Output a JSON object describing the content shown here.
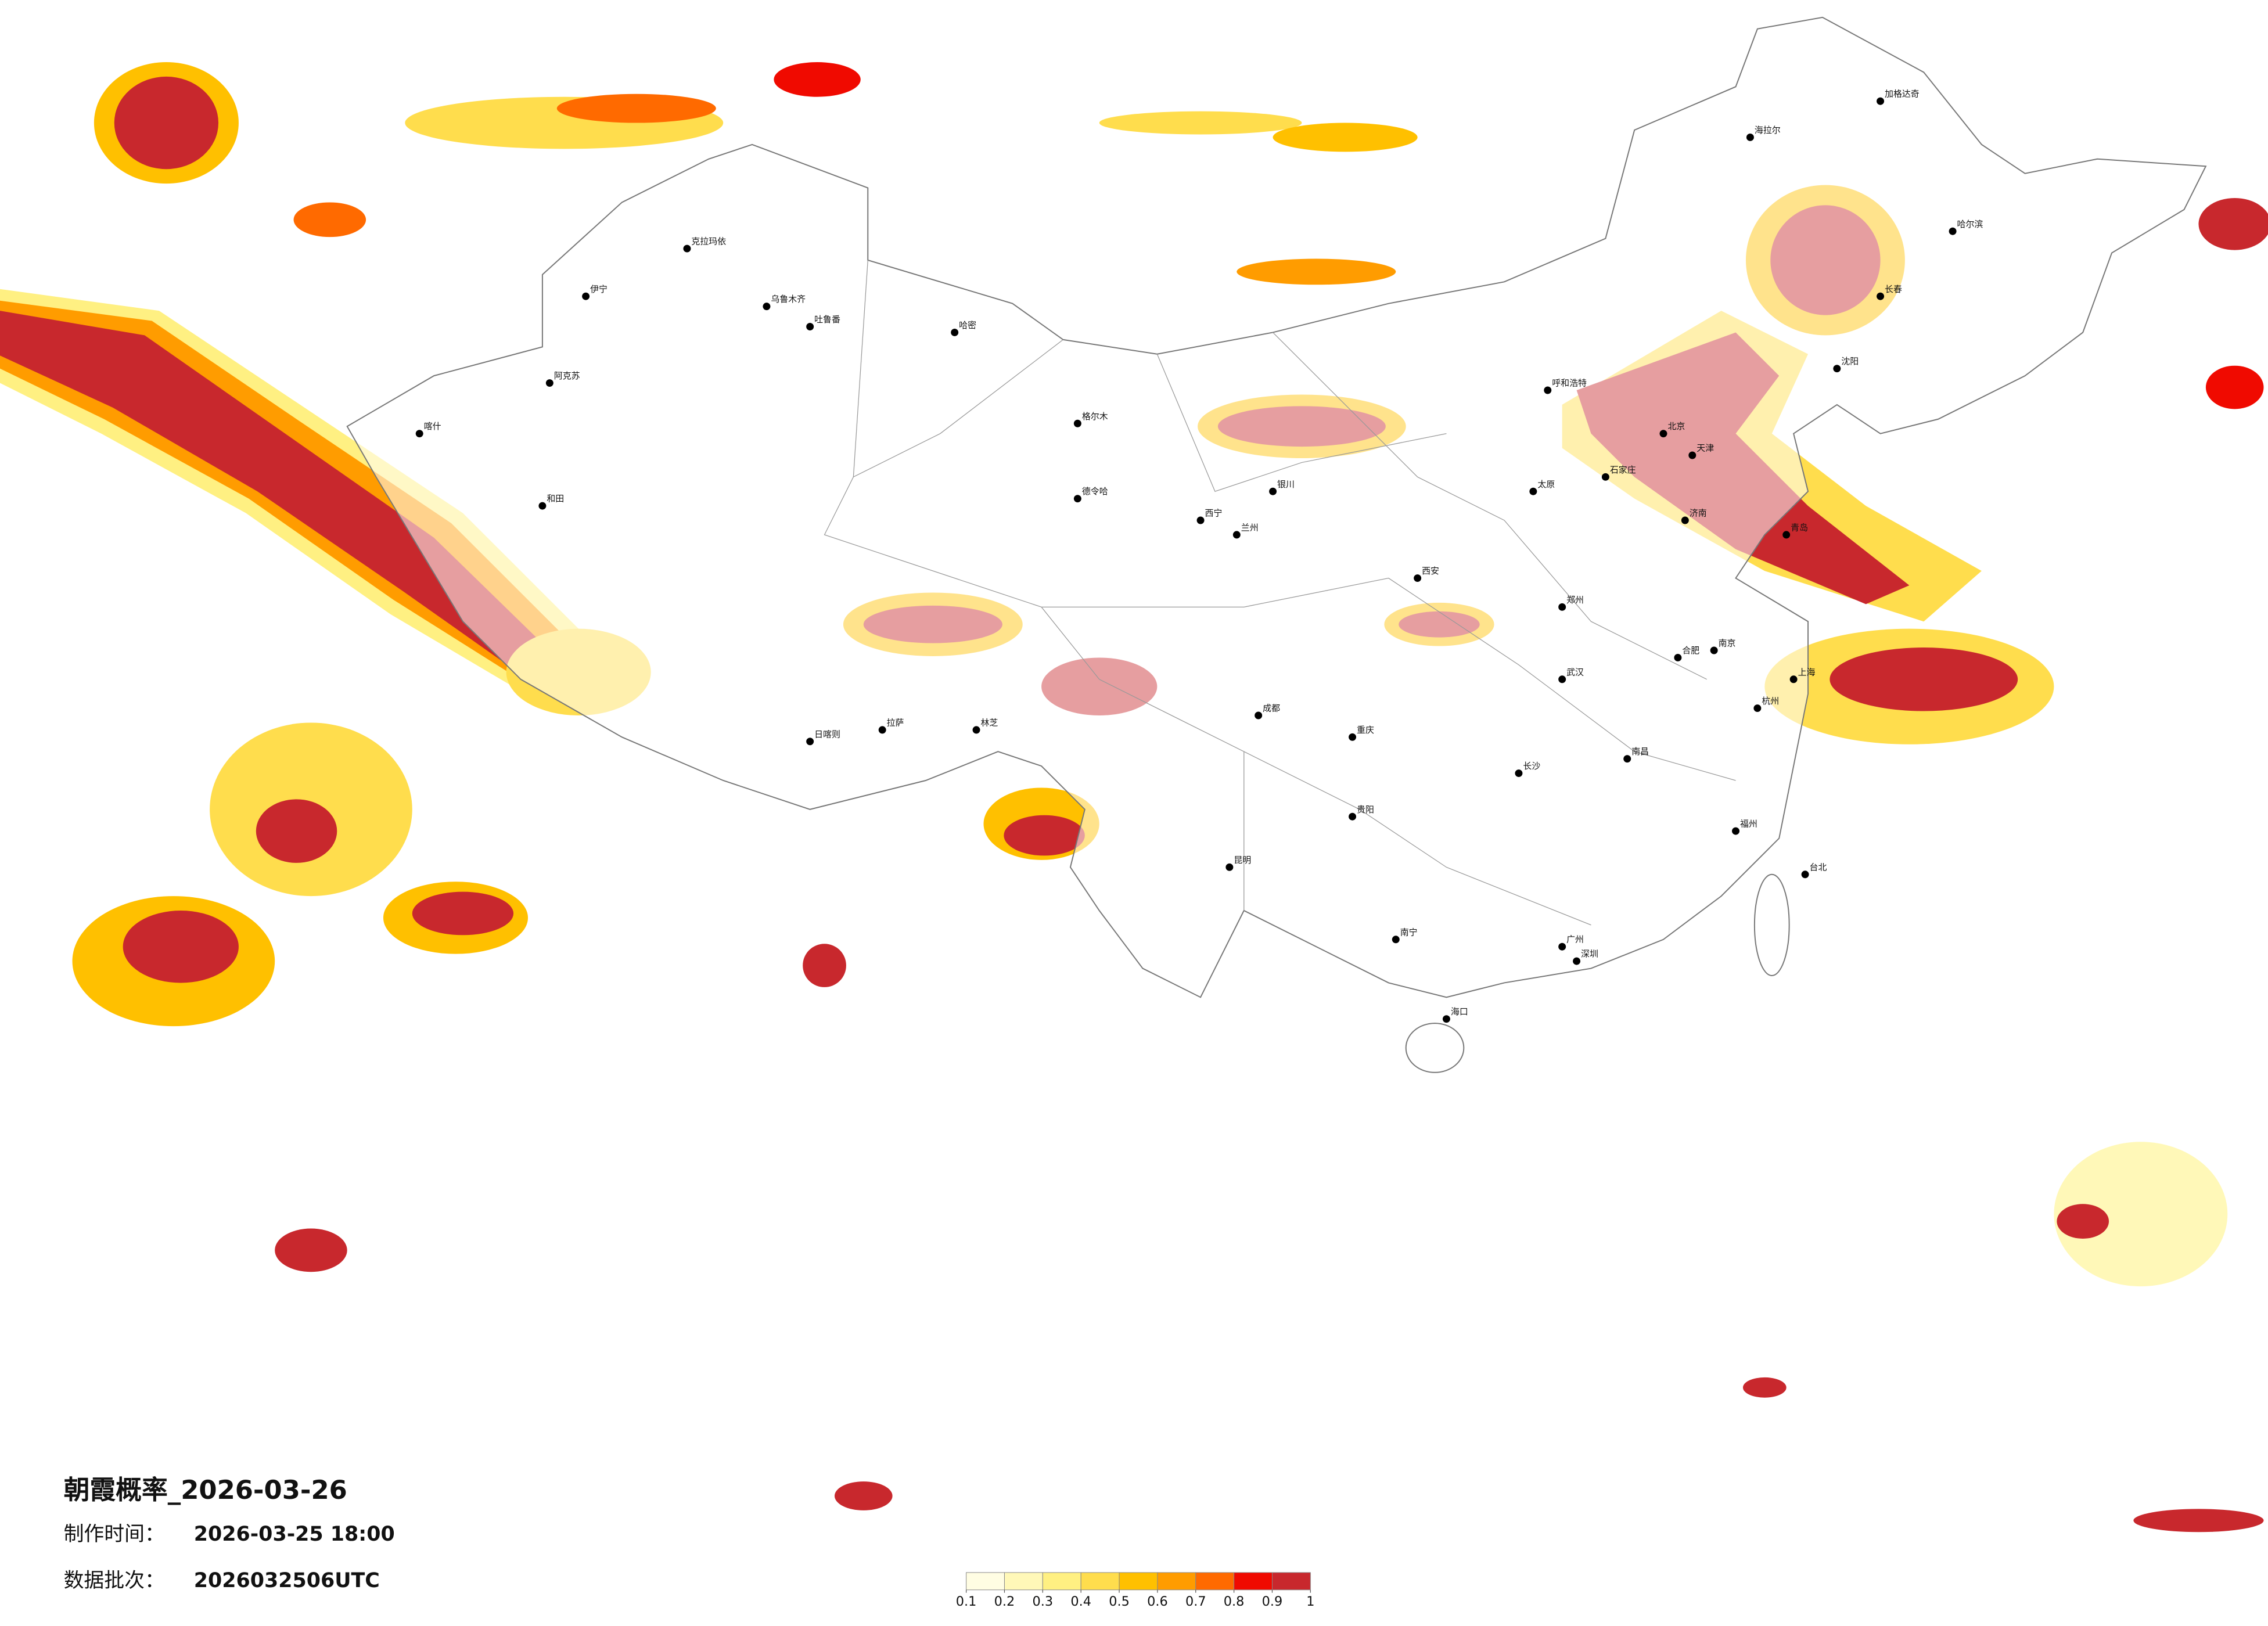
{
  "title": "朝霞概率_2026-03-26",
  "made_label": "制作时间：",
  "made_time": "2026-03-25 18:00",
  "batch_label": "数据批次：",
  "batch": "2026032506UTC",
  "colorbar": {
    "ticks": [
      0.1,
      0.2,
      0.3,
      0.4,
      0.5,
      0.6,
      0.7,
      0.8,
      0.9,
      1
    ],
    "colors": [
      "#fffde3",
      "#fff8b8",
      "#fff082",
      "#ffdd4d",
      "#ffc000",
      "#ff9c00",
      "#ff6a00",
      "#f00a00",
      "#c8282d"
    ]
  },
  "cities": [
    "克拉玛依",
    "乌鲁木齐",
    "吐鲁番",
    "伊宁",
    "阿克苏",
    "喀什",
    "和田",
    "哈密",
    "格尔木",
    "德令哈",
    "拉萨",
    "日喀则",
    "林芝",
    "西宁",
    "兰州",
    "银川",
    "呼和浩特",
    "北京",
    "天津",
    "石家庄",
    "太原",
    "济南",
    "青岛",
    "郑州",
    "西安",
    "成都",
    "重庆",
    "贵阳",
    "昆明",
    "南宁",
    "广州",
    "深圳",
    "长沙",
    "武汉",
    "南京",
    "上海",
    "杭州",
    "福州",
    "南昌",
    "合肥",
    "沈阳",
    "长春",
    "哈尔滨",
    "海口",
    "台北",
    "海拉尔",
    "加格达奇"
  ]
}
